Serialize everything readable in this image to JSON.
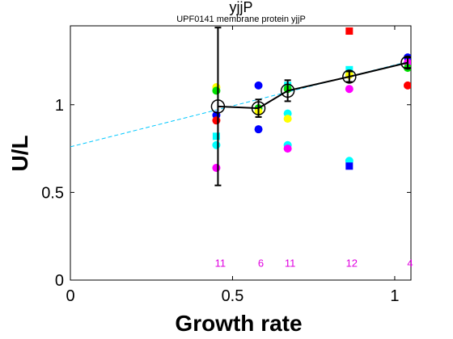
{
  "chart_data": {
    "type": "scatter",
    "title": "yjjP",
    "subtitle": "UPF0141 membrane protein yjjP",
    "xlabel": "Growth rate",
    "ylabel": "U/L",
    "xlim": [
      0,
      1.05
    ],
    "ylim": [
      0,
      1.45
    ],
    "xticks": [
      0,
      0.5,
      1
    ],
    "xtick_labels": [
      "0",
      "0.5",
      "1"
    ],
    "yticks": [
      0,
      0.5,
      1
    ],
    "ytick_labels": [
      "0",
      "0.5",
      "1"
    ],
    "grid": false,
    "fit_line": {
      "color": "#00c8ff",
      "style": "dashed",
      "points": [
        [
          0,
          0.76
        ],
        [
          1.05,
          1.25
        ]
      ]
    },
    "points": [
      {
        "x": 0.45,
        "y": 1.1,
        "color": "#ffff00",
        "shape": "circle"
      },
      {
        "x": 0.45,
        "y": 1.08,
        "color": "#00e000",
        "shape": "circle"
      },
      {
        "x": 0.45,
        "y": 0.94,
        "color": "#0000ff",
        "shape": "circle"
      },
      {
        "x": 0.45,
        "y": 0.91,
        "color": "#ff0000",
        "shape": "circle"
      },
      {
        "x": 0.45,
        "y": 0.82,
        "color": "#00ffff",
        "shape": "square"
      },
      {
        "x": 0.45,
        "y": 0.77,
        "color": "#00ffff",
        "shape": "circle"
      },
      {
        "x": 0.45,
        "y": 0.64,
        "color": "#ff00ff",
        "shape": "circle"
      },
      {
        "x": 0.58,
        "y": 1.11,
        "color": "#0000ff",
        "shape": "circle"
      },
      {
        "x": 0.58,
        "y": 0.98,
        "color": "#00e000",
        "shape": "circle"
      },
      {
        "x": 0.58,
        "y": 0.96,
        "color": "#ffff00",
        "shape": "circle"
      },
      {
        "x": 0.58,
        "y": 0.86,
        "color": "#0000ff",
        "shape": "circle"
      },
      {
        "x": 0.67,
        "y": 1.11,
        "color": "#00ffff",
        "shape": "square"
      },
      {
        "x": 0.67,
        "y": 1.09,
        "color": "#00e000",
        "shape": "circle"
      },
      {
        "x": 0.67,
        "y": 0.95,
        "color": "#00ffff",
        "shape": "circle"
      },
      {
        "x": 0.67,
        "y": 0.92,
        "color": "#ffff00",
        "shape": "circle"
      },
      {
        "x": 0.67,
        "y": 0.77,
        "color": "#00ffff",
        "shape": "circle"
      },
      {
        "x": 0.67,
        "y": 0.75,
        "color": "#ff00ff",
        "shape": "circle"
      },
      {
        "x": 0.86,
        "y": 1.42,
        "color": "#ff0000",
        "shape": "square"
      },
      {
        "x": 0.86,
        "y": 1.2,
        "color": "#00ffff",
        "shape": "square"
      },
      {
        "x": 0.86,
        "y": 1.17,
        "color": "#ffff00",
        "shape": "circle"
      },
      {
        "x": 0.86,
        "y": 1.09,
        "color": "#ff00ff",
        "shape": "circle"
      },
      {
        "x": 0.86,
        "y": 0.68,
        "color": "#00ffff",
        "shape": "circle"
      },
      {
        "x": 0.86,
        "y": 0.65,
        "color": "#0000ff",
        "shape": "square"
      },
      {
        "x": 1.04,
        "y": 1.27,
        "color": "#0000ff",
        "shape": "circle"
      },
      {
        "x": 1.04,
        "y": 1.24,
        "color": "#ff00ff",
        "shape": "circle"
      },
      {
        "x": 1.04,
        "y": 1.21,
        "color": "#00e000",
        "shape": "circle"
      },
      {
        "x": 1.04,
        "y": 1.11,
        "color": "#ff0000",
        "shape": "circle"
      }
    ],
    "mean_series": {
      "color": "#000000",
      "x": [
        0.455,
        0.58,
        0.67,
        0.86,
        1.04
      ],
      "y": [
        0.99,
        0.98,
        1.08,
        1.16,
        1.24
      ],
      "err": [
        0.45,
        0.05,
        0.06,
        0.03,
        0.03
      ]
    },
    "counts": {
      "color": "#e000e0",
      "y": 0.1,
      "x": [
        0.455,
        0.58,
        0.67,
        0.86,
        1.04
      ],
      "labels": [
        "11",
        "6",
        "11",
        "12",
        "4"
      ]
    }
  }
}
